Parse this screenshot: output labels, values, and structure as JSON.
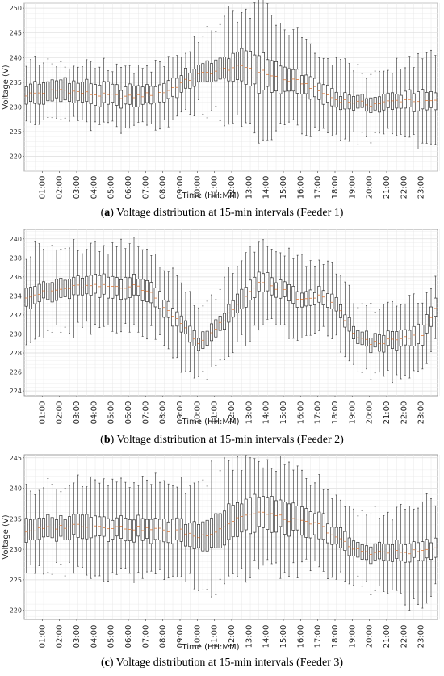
{
  "chart_data": [
    {
      "type": "boxplot",
      "caption_letter": "a",
      "caption_text": "Voltage distribution at 15-min intervals (Feeder 1)",
      "xlabel": "Time (HH:MM)",
      "ylabel": "Voltage (V)",
      "ylim": [
        217,
        251
      ],
      "yticks": [
        220,
        225,
        230,
        235,
        240,
        245,
        250
      ],
      "xticks": [
        "01:00",
        "02:00",
        "03:00",
        "04:00",
        "05:00",
        "06:00",
        "07:00",
        "08:00",
        "09:00",
        "10:00",
        "11:00",
        "12:00",
        "13:00",
        "14:00",
        "15:00",
        "16:00",
        "17:00",
        "18:00",
        "19:00",
        "20:00",
        "21:00",
        "22:00",
        "23:00"
      ],
      "grid": true,
      "median_hours": [
        0,
        2,
        4,
        6,
        8,
        10,
        12,
        13,
        15,
        16,
        18,
        20,
        22,
        24
      ],
      "median_values": [
        232.5,
        233.5,
        232.5,
        232,
        233,
        236.5,
        238,
        238,
        235.5,
        235,
        231.5,
        230.5,
        231.5,
        231
      ],
      "iqr_hours": [
        0,
        6,
        10,
        12,
        13.5,
        15,
        18,
        22,
        24
      ],
      "iqr_values": [
        4,
        4,
        3.5,
        5.5,
        7,
        5,
        3,
        3,
        4
      ],
      "whisker_hours": [
        0,
        6,
        10,
        12,
        13.5,
        15,
        18,
        22,
        23.5,
        24
      ],
      "whisker_values": [
        6,
        6,
        7,
        11,
        13,
        10,
        7,
        7,
        10,
        8
      ]
    },
    {
      "type": "boxplot",
      "caption_letter": "b",
      "caption_text": "Voltage distribution at 15-min intervals (Feeder 2)",
      "xlabel": "Time (HH:MM)",
      "ylabel": "",
      "ylim": [
        223.5,
        241
      ],
      "yticks": [
        224,
        226,
        228,
        230,
        232,
        234,
        236,
        238,
        240
      ],
      "xticks": [
        "01:00",
        "02:00",
        "03:00",
        "04:00",
        "05:00",
        "06:00",
        "07:00",
        "08:00",
        "09:00",
        "10:00",
        "11:00",
        "12:00",
        "13:00",
        "14:00",
        "15:00",
        "16:00",
        "17:00",
        "18:00",
        "19:00",
        "20:00",
        "21:00",
        "22:00",
        "23:00"
      ],
      "grid": true,
      "median_hours": [
        0,
        3,
        6.5,
        7.5,
        9,
        10,
        11,
        12.5,
        13.5,
        15,
        16,
        17,
        18,
        19,
        20,
        22,
        23,
        24
      ],
      "median_values": [
        234,
        235,
        235,
        234,
        231,
        229,
        230.5,
        233.5,
        235.5,
        234.5,
        233.5,
        234,
        233,
        230,
        229,
        229.5,
        230,
        233.5
      ],
      "iqr_hours": [
        0,
        7,
        10,
        13.5,
        16,
        19,
        24
      ],
      "iqr_values": [
        2,
        2,
        1.5,
        2,
        1.5,
        1.5,
        2
      ],
      "whisker_hours": [
        0,
        6,
        10,
        13.5,
        16,
        19,
        24
      ],
      "whisker_values": [
        4.5,
        4.5,
        4,
        4.5,
        4,
        3.5,
        4
      ]
    },
    {
      "type": "boxplot",
      "caption_letter": "c",
      "caption_text": "Voltage distribution at 15-min intervals (Feeder 3)",
      "xlabel": "Time (HH:MM)",
      "ylabel": "Voltage (V)",
      "ylim": [
        218.5,
        245.5
      ],
      "yticks": [
        220,
        225,
        230,
        235,
        240,
        245
      ],
      "xticks": [
        "01:00",
        "02:00",
        "03:00",
        "04:00",
        "05:00",
        "06:00",
        "07:00",
        "08:00",
        "09:00",
        "10:00",
        "11:00",
        "12:00",
        "13:00",
        "14:00",
        "15:00",
        "16:00",
        "17:00",
        "18:00",
        "19:00",
        "20:00",
        "21:00",
        "22:00",
        "23:00"
      ],
      "grid": true,
      "median_hours": [
        0,
        3,
        6,
        9,
        10,
        11,
        12.5,
        14,
        15,
        17,
        18,
        19,
        20,
        22,
        24
      ],
      "median_values": [
        233,
        234,
        233.5,
        233,
        232,
        233,
        235.5,
        236,
        235,
        234,
        232,
        230,
        229.5,
        229.5,
        230
      ],
      "iqr_hours": [
        0,
        9,
        11,
        13.5,
        16,
        19,
        24
      ],
      "iqr_values": [
        3.5,
        3.5,
        5,
        5.5,
        4.5,
        2.5,
        3
      ],
      "whisker_hours": [
        0,
        9,
        10,
        13.5,
        16,
        19,
        23.5,
        24
      ],
      "whisker_values": [
        7,
        7.5,
        9.5,
        9.5,
        8,
        5.5,
        8,
        6
      ]
    }
  ]
}
